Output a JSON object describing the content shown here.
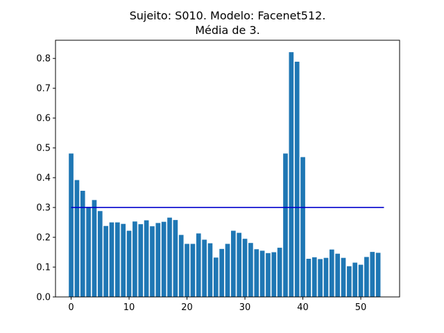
{
  "chart_data": {
    "type": "bar",
    "title_line1": "Sujeito: S010. Modelo: Facenet512.",
    "title_line2": "Média de 3.",
    "xlabel": "",
    "ylabel": "",
    "xlim": [
      -2.7,
      56.7
    ],
    "ylim": [
      0.0,
      0.861
    ],
    "x_ticks": [
      0,
      10,
      20,
      30,
      40,
      50
    ],
    "y_ticks": [
      0.0,
      0.1,
      0.2,
      0.3,
      0.4,
      0.5,
      0.6,
      0.7,
      0.8
    ],
    "x_tick_labels": [
      "0",
      "10",
      "20",
      "30",
      "40",
      "50"
    ],
    "y_tick_labels": [
      "0.0",
      "0.1",
      "0.2",
      "0.3",
      "0.4",
      "0.5",
      "0.6",
      "0.7",
      "0.8"
    ],
    "bar_color": "#1f77b4",
    "x": [
      0,
      1,
      2,
      3,
      4,
      5,
      6,
      7,
      8,
      9,
      10,
      11,
      12,
      13,
      14,
      15,
      16,
      17,
      18,
      19,
      20,
      21,
      22,
      23,
      24,
      25,
      26,
      27,
      28,
      29,
      30,
      31,
      32,
      33,
      34,
      35,
      36,
      37,
      38,
      39,
      40,
      41,
      42,
      43,
      44,
      45,
      46,
      47,
      48,
      49,
      50,
      51,
      52,
      53
    ],
    "values": [
      0.481,
      0.392,
      0.356,
      0.302,
      0.325,
      0.288,
      0.238,
      0.25,
      0.25,
      0.245,
      0.222,
      0.253,
      0.244,
      0.257,
      0.237,
      0.248,
      0.252,
      0.266,
      0.258,
      0.208,
      0.178,
      0.178,
      0.213,
      0.192,
      0.18,
      0.132,
      0.161,
      0.178,
      0.222,
      0.215,
      0.195,
      0.181,
      0.16,
      0.155,
      0.147,
      0.15,
      0.165,
      0.481,
      0.821,
      0.789,
      0.469,
      0.128,
      0.133,
      0.127,
      0.131,
      0.159,
      0.145,
      0.131,
      0.103,
      0.115,
      0.108,
      0.134,
      0.151,
      0.148
    ],
    "hline": {
      "y": 0.3,
      "x_start": 0,
      "x_end": 54,
      "color": "#0000cc"
    },
    "grid": false,
    "legend": "none"
  }
}
